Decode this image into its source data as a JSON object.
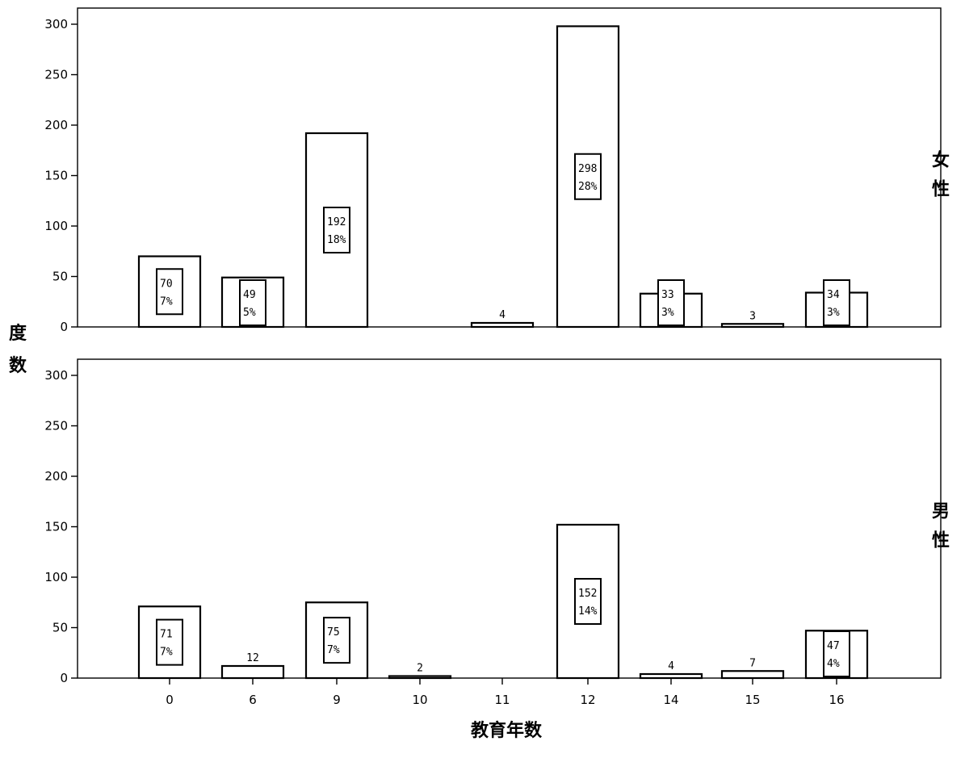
{
  "chart_data": {
    "type": "bar",
    "xlabel": "教育年数",
    "ylabel": "度数",
    "ylim": [
      0,
      300
    ],
    "yticks": [
      0,
      50,
      100,
      150,
      200,
      250,
      300
    ],
    "categories": [
      "0",
      "6",
      "9",
      "10",
      "11",
      "12",
      "14",
      "15",
      "16"
    ],
    "grid": false,
    "panels": [
      {
        "label": "女性",
        "values": [
          70,
          49,
          192,
          0,
          4,
          298,
          33,
          3,
          34
        ],
        "count_labels": [
          "70",
          "49",
          "192",
          "",
          "4",
          "298",
          "33",
          "3",
          "34"
        ],
        "percent_labels": [
          "7%",
          "5%",
          "18%",
          "",
          "",
          "28%",
          "3%",
          "",
          "3%"
        ]
      },
      {
        "label": "男性",
        "values": [
          71,
          12,
          75,
          2,
          0,
          152,
          4,
          7,
          47
        ],
        "count_labels": [
          "71",
          "12",
          "75",
          "2",
          "",
          "152",
          "4",
          "7",
          "47"
        ],
        "percent_labels": [
          "7%",
          "",
          "7%",
          "",
          "",
          "14%",
          "",
          "",
          "4%"
        ]
      }
    ]
  }
}
